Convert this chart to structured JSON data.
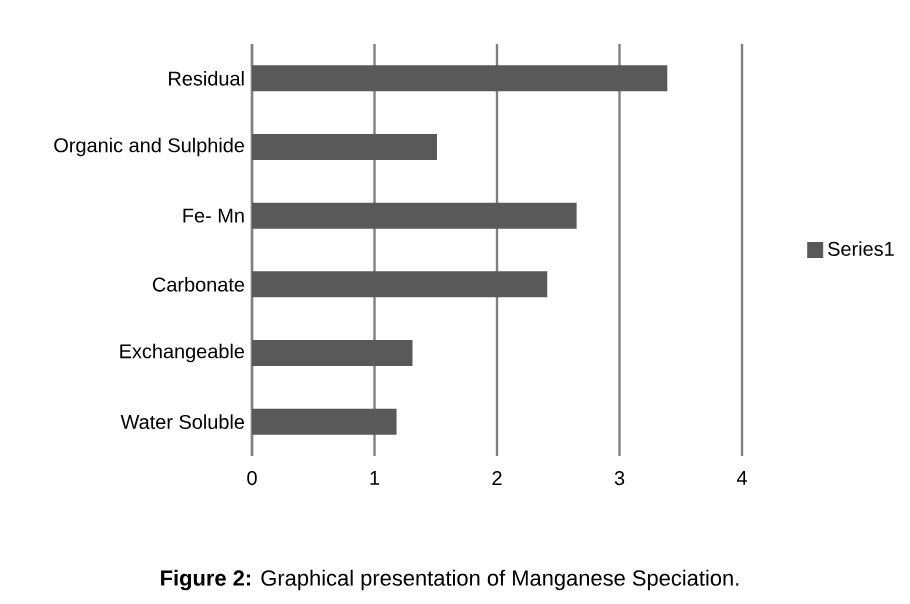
{
  "chart_data": {
    "type": "bar",
    "orientation": "horizontal",
    "categories": [
      "Residual",
      "Organic and Sulphide",
      "Fe- Mn",
      "Carbonate",
      "Exchangeable",
      "Water Soluble"
    ],
    "series": [
      {
        "name": "Series1",
        "color": "#595959",
        "values": [
          3.39,
          1.51,
          2.65,
          2.41,
          1.31,
          1.18
        ]
      }
    ],
    "xlim": [
      0,
      4
    ],
    "xticks": [
      0,
      1,
      2,
      3,
      4
    ],
    "grid": "x",
    "legend": "right",
    "annotations": [
      "**Figure 2:** Graphical presentation of Manganese Speciation."
    ]
  }
}
